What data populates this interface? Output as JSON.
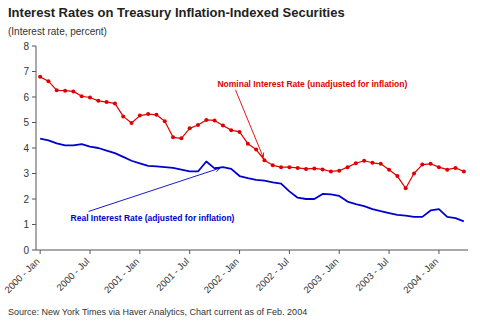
{
  "chart_data": {
    "type": "line",
    "title": "Interest Rates on Treasury Inflation-Indexed Securities",
    "y_label": "(Interest rate, percent)",
    "source": "Source:  New York Times via Haver Analytics, Chart current as of Feb. 2004",
    "categories": [
      "2000 - Jan",
      null,
      null,
      null,
      null,
      null,
      "2000 - Jul",
      null,
      null,
      null,
      null,
      null,
      "2001 - Jan",
      null,
      null,
      null,
      null,
      null,
      "2001 - Jul",
      null,
      null,
      null,
      null,
      null,
      "2002 - Jan",
      null,
      null,
      null,
      null,
      null,
      "2002 - Jul",
      null,
      null,
      null,
      null,
      null,
      "2003 - Jan",
      null,
      null,
      null,
      null,
      null,
      "2003 - Jul",
      null,
      null,
      null,
      null,
      null,
      "2004 - Jan",
      null,
      null,
      null
    ],
    "series": [
      {
        "name": "Nominal Interest Rate (unadjusted for inflation)",
        "color": "#dd0000",
        "marker": "circle",
        "line_style": "solid",
        "values": [
          6.79,
          6.62,
          6.26,
          6.25,
          6.22,
          6.03,
          5.98,
          5.85,
          5.8,
          5.75,
          5.24,
          4.98,
          5.27,
          5.33,
          5.3,
          5.05,
          4.42,
          4.38,
          4.77,
          4.9,
          5.1,
          5.08,
          4.88,
          4.7,
          4.63,
          4.17,
          3.94,
          3.52,
          3.32,
          3.25,
          3.25,
          3.22,
          3.18,
          3.2,
          3.16,
          3.08,
          3.11,
          3.25,
          3.4,
          3.5,
          3.42,
          3.38,
          3.15,
          2.9,
          2.42,
          3.0,
          3.35,
          3.38,
          3.25,
          3.15,
          3.22,
          3.08
        ]
      },
      {
        "name": "Real Interest Rate (adjusted for inflation)",
        "color": "#0000cc",
        "marker": "none",
        "line_style": "solid",
        "values": [
          4.37,
          4.3,
          4.18,
          4.1,
          4.1,
          4.15,
          4.05,
          4.0,
          3.9,
          3.8,
          3.65,
          3.5,
          3.4,
          3.3,
          3.28,
          3.25,
          3.22,
          3.15,
          3.08,
          3.08,
          3.47,
          3.2,
          3.25,
          3.18,
          2.9,
          2.82,
          2.75,
          2.72,
          2.65,
          2.6,
          2.3,
          2.05,
          2.0,
          2.0,
          2.2,
          2.18,
          2.12,
          1.9,
          1.8,
          1.72,
          1.6,
          1.52,
          1.45,
          1.38,
          1.35,
          1.3,
          1.3,
          1.55,
          1.6,
          1.3,
          1.25,
          1.12
        ]
      }
    ],
    "ylim": [
      0,
      8
    ],
    "yticks": [
      0,
      1,
      2,
      3,
      4,
      5,
      6,
      7,
      8
    ],
    "grid": false
  }
}
